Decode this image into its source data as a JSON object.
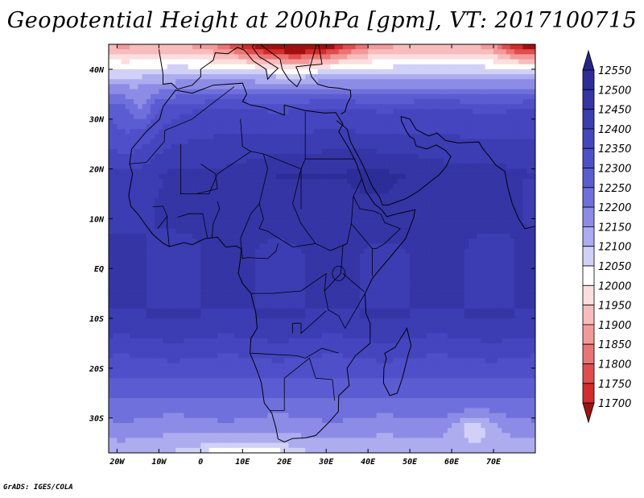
{
  "chart_data": {
    "type": "heatmap",
    "title": "Geopotential Height at 200hPa [gpm], VT: 2017100715",
    "x_ticks": [
      "20W",
      "10W",
      "0",
      "10E",
      "20E",
      "30E",
      "40E",
      "50E",
      "60E",
      "70E"
    ],
    "x_tick_values": [
      -20,
      -10,
      0,
      10,
      20,
      30,
      40,
      50,
      60,
      70
    ],
    "y_ticks": [
      "40N",
      "30N",
      "20N",
      "10N",
      "EQ",
      "10S",
      "20S",
      "30S"
    ],
    "y_tick_values": [
      40,
      30,
      20,
      10,
      0,
      -10,
      -20,
      -30
    ],
    "xlim": [
      -22,
      80
    ],
    "ylim": [
      -37,
      45
    ],
    "colorbar": {
      "levels": [
        12550,
        12500,
        12450,
        12400,
        12350,
        12300,
        12250,
        12200,
        12150,
        12100,
        12050,
        12000,
        11950,
        11900,
        11850,
        11800,
        11750,
        11700
      ],
      "colors": [
        "#2d2d99",
        "#3535a6",
        "#3c3cb3",
        "#4545bf",
        "#4f4fc9",
        "#5c5cd2",
        "#7070dc",
        "#8c8ce6",
        "#acacef",
        "#d1d1f7",
        "#ffffff",
        "#fcdede",
        "#f8bcbc",
        "#f29a9a",
        "#ea7474",
        "#e14d4d",
        "#d42b2b",
        "#b81a1a"
      ],
      "colors_extend": {
        "above": "#262688",
        "below": "#a01010"
      }
    },
    "field_description_levels": {
      "north_africa_mid": 12350,
      "sahara_20N": 12450,
      "equator": 12450,
      "south_15S": 12350,
      "south_25S": 12200,
      "south_35S": 12100,
      "med_40N": 12050,
      "balkans_45N": 11800
    }
  },
  "credit": "GrADS: IGES/COLA"
}
